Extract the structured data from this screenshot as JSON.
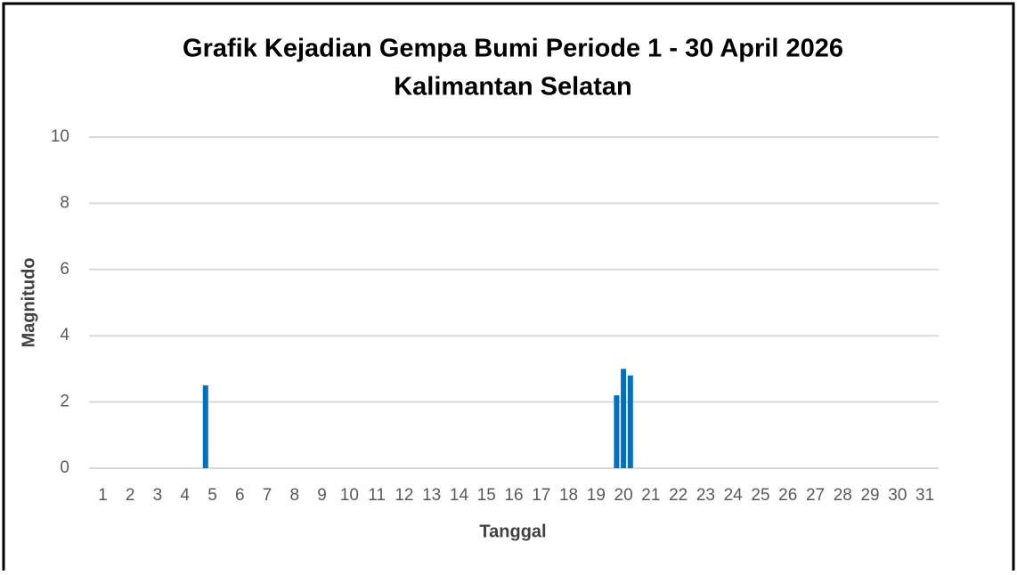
{
  "chart_data": {
    "type": "bar",
    "title": "Grafik  Kejadian Gempa Bumi Periode 1 - 30 April 2026",
    "subtitle": "Kalimantan Selatan",
    "x_label": "Tanggal",
    "y_label": "Magnitudo",
    "x": [
      4.75,
      19.75,
      20.0,
      20.25
    ],
    "values": [
      2.5,
      2.2,
      3.0,
      2.8
    ],
    "color": "#0070c0",
    "xlim": [
      0.5,
      31.5
    ],
    "xticks": [
      1,
      2,
      3,
      4,
      5,
      6,
      7,
      8,
      9,
      10,
      11,
      12,
      13,
      14,
      15,
      16,
      17,
      18,
      19,
      20,
      21,
      22,
      23,
      24,
      25,
      26,
      27,
      28,
      29,
      30,
      31
    ],
    "ylim": [
      0,
      10
    ],
    "yticks": [
      0,
      2,
      4,
      6,
      8,
      10
    ],
    "grid": true
  }
}
